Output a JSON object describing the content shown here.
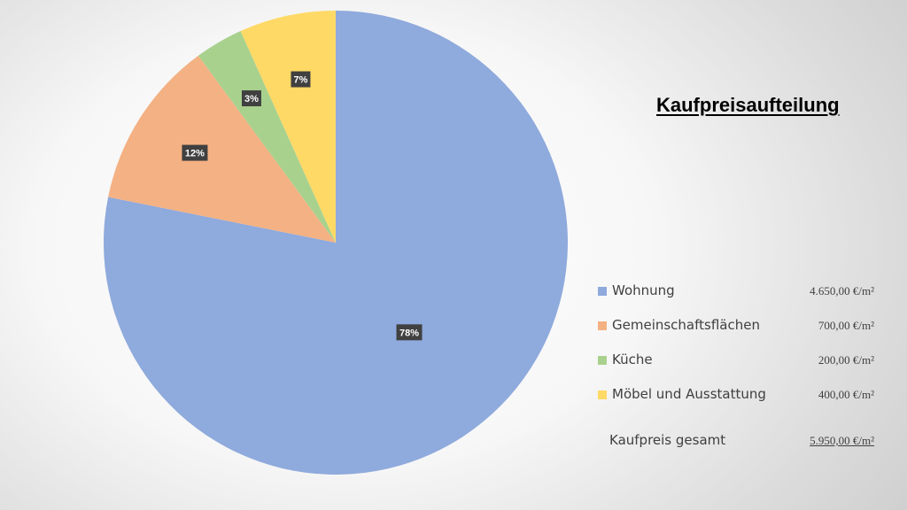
{
  "chart_data": {
    "type": "pie",
    "title": "Kaufpreisaufteilung",
    "categories": [
      "Wohnung",
      "Gemeinschaftsflächen",
      "Küche",
      "Möbel und Ausstattung"
    ],
    "values": [
      4650,
      700,
      200,
      400
    ],
    "value_labels": [
      "4.650,00 €/m²",
      "700,00 €/m²",
      "200,00 €/m²",
      "400,00 €/m²"
    ],
    "percent_labels": [
      "78%",
      "12%",
      "3%",
      "7%"
    ],
    "colors": [
      "#8FAADC",
      "#F4B183",
      "#A9D18E",
      "#FFD966"
    ],
    "start_angle_deg": 0,
    "direction": "clockwise",
    "legend_position": "right",
    "total_label": "Kaufpreis gesamt",
    "total_value": "5.950,00 €/m²"
  }
}
